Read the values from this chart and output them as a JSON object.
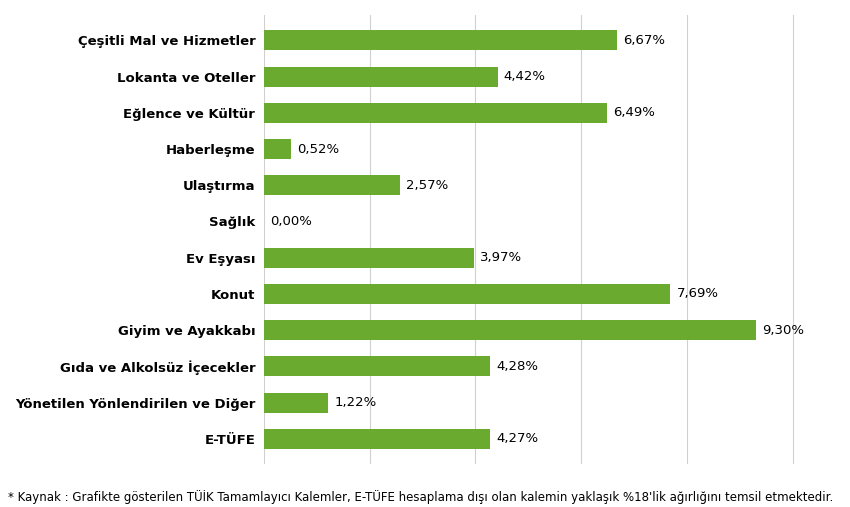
{
  "categories": [
    "E-TÜFE",
    "Yönetilen Yönlendirilen ve Diğer",
    "Gıda ve Alkolsüz İçecekler",
    "Giyim ve Ayakkabı",
    "Konut",
    "Ev Eşyası",
    "Sağlık",
    "Ulaştırma",
    "Haberleşme",
    "Eğlence ve Kültür",
    "Lokanta ve Oteller",
    "Çeşitli Mal ve Hizmetler"
  ],
  "values": [
    4.27,
    1.22,
    4.28,
    9.3,
    7.69,
    3.97,
    0.0,
    2.57,
    0.52,
    6.49,
    4.42,
    6.67
  ],
  "labels": [
    "4,27%",
    "1,22%",
    "4,28%",
    "9,30%",
    "7,69%",
    "3,97%",
    "0,00%",
    "2,57%",
    "0,52%",
    "6,49%",
    "4,42%",
    "6,67%"
  ],
  "bar_color": "#6aaa2e",
  "background_color": "#ffffff",
  "footnote": "* Kaynak : Grafikte gösterilen TÜİK Tamamlayıcı Kalemler, E-TÜFE hesaplama dışı olan kalemin yaklaşık %18'lik ağırlığını temsil etmektedir.",
  "xlim": [
    0,
    10.8
  ],
  "bar_height": 0.55,
  "label_fontsize": 9.5,
  "tick_fontsize": 9.5,
  "footnote_fontsize": 8.5,
  "grid_color": "#d0d0d0",
  "grid_positions": [
    0,
    2,
    4,
    6,
    8,
    10
  ]
}
